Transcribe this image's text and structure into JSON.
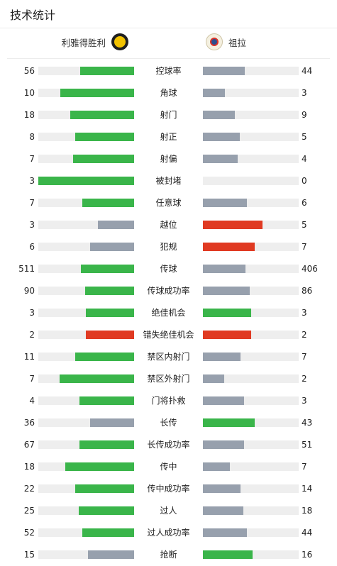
{
  "header": {
    "title": "技术统计"
  },
  "teams": {
    "home": {
      "name": "利雅得胜利",
      "logo": "al-nassr-logo"
    },
    "away": {
      "name": "祖拉",
      "logo": "zawraa-logo"
    }
  },
  "colors": {
    "green": "#3ab54a",
    "red": "#e03a22",
    "gray": "#97a0ad",
    "track": "#eeeeee"
  },
  "stats": [
    {
      "label": "控球率",
      "home": 56,
      "away": 44,
      "home_color": "green",
      "away_color": "gray"
    },
    {
      "label": "角球",
      "home": 10,
      "away": 3,
      "home_color": "green",
      "away_color": "gray"
    },
    {
      "label": "射门",
      "home": 18,
      "away": 9,
      "home_color": "green",
      "away_color": "gray"
    },
    {
      "label": "射正",
      "home": 8,
      "away": 5,
      "home_color": "green",
      "away_color": "gray"
    },
    {
      "label": "射偏",
      "home": 7,
      "away": 4,
      "home_color": "green",
      "away_color": "gray"
    },
    {
      "label": "被封堵",
      "home": 3,
      "away": 0,
      "home_color": "green",
      "away_color": "gray"
    },
    {
      "label": "任意球",
      "home": 7,
      "away": 6,
      "home_color": "green",
      "away_color": "gray"
    },
    {
      "label": "越位",
      "home": 3,
      "away": 5,
      "home_color": "gray",
      "away_color": "red"
    },
    {
      "label": "犯规",
      "home": 6,
      "away": 7,
      "home_color": "gray",
      "away_color": "red"
    },
    {
      "label": "传球",
      "home": 511,
      "away": 406,
      "home_color": "green",
      "away_color": "gray"
    },
    {
      "label": "传球成功率",
      "home": 90,
      "away": 86,
      "home_color": "green",
      "away_color": "gray"
    },
    {
      "label": "绝佳机会",
      "home": 3,
      "away": 3,
      "home_color": "green",
      "away_color": "green"
    },
    {
      "label": "错失绝佳机会",
      "home": 2,
      "away": 2,
      "home_color": "red",
      "away_color": "red"
    },
    {
      "label": "禁区内射门",
      "home": 11,
      "away": 7,
      "home_color": "green",
      "away_color": "gray"
    },
    {
      "label": "禁区外射门",
      "home": 7,
      "away": 2,
      "home_color": "green",
      "away_color": "gray"
    },
    {
      "label": "门将扑救",
      "home": 4,
      "away": 3,
      "home_color": "green",
      "away_color": "gray"
    },
    {
      "label": "长传",
      "home": 36,
      "away": 43,
      "home_color": "gray",
      "away_color": "green"
    },
    {
      "label": "长传成功率",
      "home": 67,
      "away": 51,
      "home_color": "green",
      "away_color": "gray"
    },
    {
      "label": "传中",
      "home": 18,
      "away": 7,
      "home_color": "green",
      "away_color": "gray"
    },
    {
      "label": "传中成功率",
      "home": 22,
      "away": 14,
      "home_color": "green",
      "away_color": "gray"
    },
    {
      "label": "过人",
      "home": 25,
      "away": 18,
      "home_color": "green",
      "away_color": "gray"
    },
    {
      "label": "过人成功率",
      "home": 52,
      "away": 44,
      "home_color": "green",
      "away_color": "gray"
    },
    {
      "label": "抢断",
      "home": 15,
      "away": 16,
      "home_color": "gray",
      "away_color": "green"
    }
  ]
}
